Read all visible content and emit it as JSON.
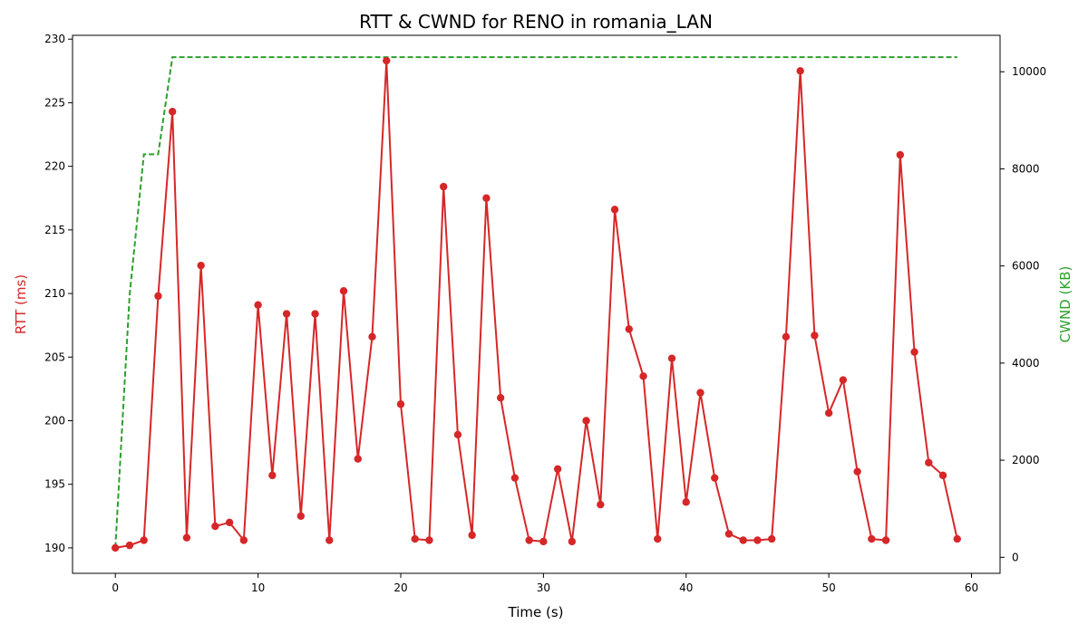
{
  "chart_data": {
    "type": "line",
    "title": "RTT & CWND for RENO in romania_LAN",
    "xlabel": "Time (s)",
    "ylabel_left": "RTT (ms)",
    "ylabel_right": "CWND (KB)",
    "xlim": [
      -3,
      62
    ],
    "ylim_left": [
      188.0,
      230.3
    ],
    "ylim_right": [
      -330,
      10750
    ],
    "x_ticks": [
      0,
      10,
      20,
      30,
      40,
      50,
      60
    ],
    "y_left_ticks": [
      190,
      195,
      200,
      205,
      210,
      215,
      220,
      225,
      230
    ],
    "y_right_ticks": [
      0,
      2000,
      4000,
      6000,
      8000,
      10000
    ],
    "colors": {
      "rtt": "#d62728",
      "cwnd": "#2ca02c"
    },
    "series": [
      {
        "name": "RTT",
        "axis": "left",
        "style": "solid-with-markers",
        "x": [
          0,
          1,
          2,
          3,
          4,
          5,
          6,
          7,
          8,
          9,
          10,
          11,
          12,
          13,
          14,
          15,
          16,
          17,
          18,
          19,
          20,
          21,
          22,
          23,
          24,
          25,
          26,
          27,
          28,
          29,
          30,
          31,
          32,
          33,
          34,
          35,
          36,
          37,
          38,
          39,
          40,
          41,
          42,
          43,
          44,
          45,
          46,
          47,
          48,
          49,
          50,
          51,
          52,
          53,
          54,
          55,
          56,
          57,
          58,
          59
        ],
        "values": [
          190.0,
          190.2,
          190.6,
          209.8,
          224.3,
          190.8,
          212.2,
          191.7,
          192.0,
          190.6,
          209.1,
          195.7,
          208.4,
          192.5,
          208.4,
          190.6,
          210.2,
          197.0,
          206.6,
          228.3,
          201.3,
          190.7,
          190.6,
          218.4,
          198.9,
          191.0,
          217.5,
          201.8,
          195.5,
          190.6,
          190.5,
          196.2,
          190.5,
          200.0,
          193.4,
          216.6,
          207.2,
          203.5,
          190.7,
          204.9,
          193.6,
          202.2,
          195.5,
          191.1,
          190.6,
          190.6,
          190.7,
          206.6,
          227.5,
          206.7,
          200.6,
          203.2,
          196.0,
          190.7,
          190.6,
          220.9,
          205.4,
          196.7,
          195.7,
          190.7
        ]
      },
      {
        "name": "CWND",
        "axis": "right",
        "style": "dashed",
        "x": [
          0,
          1,
          2,
          3,
          4,
          5,
          6,
          7,
          8,
          9,
          10,
          11,
          12,
          13,
          14,
          15,
          16,
          17,
          18,
          19,
          20,
          21,
          22,
          23,
          24,
          25,
          26,
          27,
          28,
          29,
          30,
          31,
          32,
          33,
          34,
          35,
          36,
          37,
          38,
          39,
          40,
          41,
          42,
          43,
          44,
          45,
          46,
          47,
          48,
          49,
          50,
          51,
          52,
          53,
          54,
          55,
          56,
          57,
          58,
          59
        ],
        "values": [
          200,
          5400,
          8300,
          8300,
          10300,
          10300,
          10300,
          10300,
          10300,
          10300,
          10300,
          10300,
          10300,
          10300,
          10300,
          10300,
          10300,
          10300,
          10300,
          10300,
          10300,
          10300,
          10300,
          10300,
          10300,
          10300,
          10300,
          10300,
          10300,
          10300,
          10300,
          10300,
          10300,
          10300,
          10300,
          10300,
          10300,
          10300,
          10300,
          10300,
          10300,
          10300,
          10300,
          10300,
          10300,
          10300,
          10300,
          10300,
          10300,
          10300,
          10300,
          10300,
          10300,
          10300,
          10300,
          10300,
          10300,
          10300,
          10300,
          10300
        ]
      }
    ]
  }
}
